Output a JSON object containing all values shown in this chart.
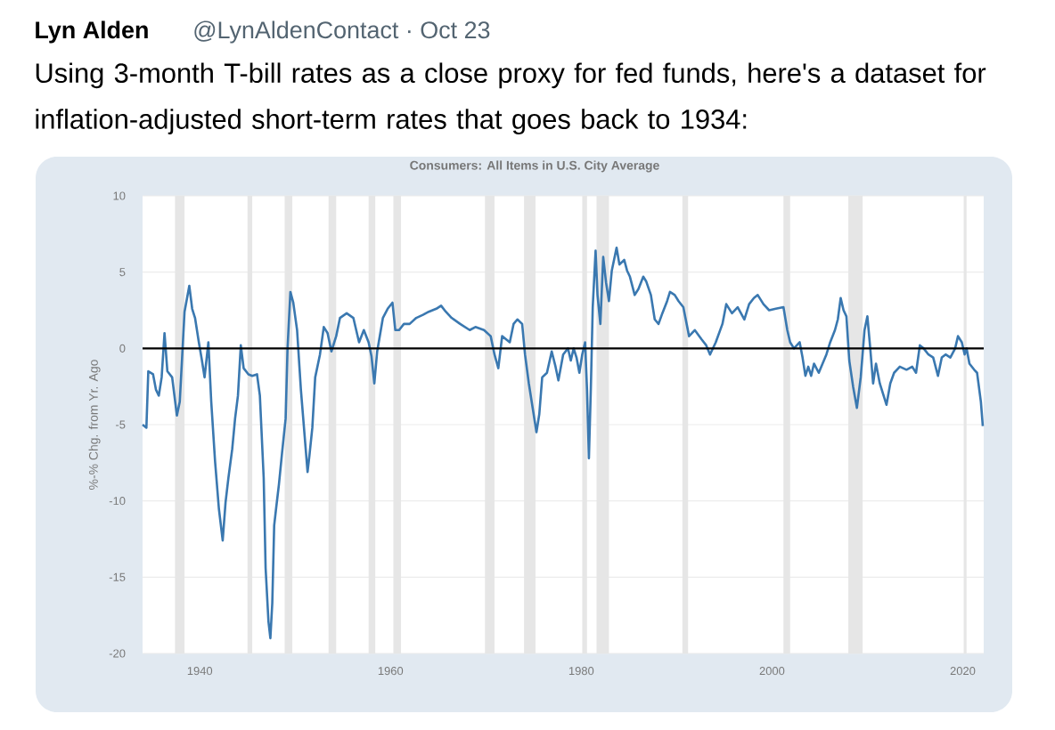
{
  "chart_data": {
    "type": "line",
    "title": "Using 3-month T-bill rates as a close proxy for fed funds, here's a dataset for inflation-adjusted short-term rates that goes back to 1934:",
    "subtitle": "Consumers: All Items in U.S. City Average",
    "annotations": [
      "Lyn Alden",
      "@LynAldenContact · Oct 23"
    ],
    "ylabel": "%-% Chg. from Yr. Ago",
    "x": [
      1934.0,
      1934.4,
      1934.6,
      1935.1,
      1935.4,
      1935.7,
      1936.0,
      1936.3,
      1936.6,
      1937.1,
      1937.6,
      1937.9,
      1938.4,
      1938.9,
      1939.2,
      1939.5,
      1939.9,
      1940.2,
      1940.5,
      1940.9,
      1941.2,
      1941.6,
      1942.0,
      1942.4,
      1942.7,
      1943.0,
      1943.4,
      1943.7,
      1944.0,
      1944.3,
      1944.6,
      1945.1,
      1945.5,
      1946.0,
      1946.3,
      1946.7,
      1946.9,
      1947.2,
      1947.4,
      1947.6,
      1947.8,
      1948.0,
      1948.3,
      1948.6,
      1949.0,
      1949.2,
      1949.5,
      1949.8,
      1950.2,
      1950.6,
      1951.0,
      1951.3,
      1951.5,
      1951.8,
      1952.1,
      1952.6,
      1953.0,
      1953.4,
      1953.8,
      1954.3,
      1954.7,
      1955.4,
      1956.1,
      1956.7,
      1957.2,
      1957.7,
      1958.0,
      1958.3,
      1958.6,
      1959.2,
      1959.7,
      1960.2,
      1960.5,
      1960.9,
      1961.4,
      1962.0,
      1962.7,
      1963.4,
      1964.0,
      1964.8,
      1965.3,
      1965.8,
      1966.4,
      1967.3,
      1968.3,
      1968.9,
      1969.8,
      1970.5,
      1970.9,
      1971.3,
      1971.7,
      1972.1,
      1972.5,
      1972.9,
      1973.3,
      1973.8,
      1974.1,
      1974.5,
      1974.9,
      1975.3,
      1975.6,
      1975.9,
      1976.4,
      1976.9,
      1977.3,
      1977.6,
      1978.1,
      1978.6,
      1978.9,
      1979.2,
      1979.5,
      1979.8,
      1980.1,
      1980.4,
      1980.6,
      1980.8,
      1981.0,
      1981.2,
      1981.5,
      1981.7,
      1982.0,
      1982.3,
      1982.6,
      1982.9,
      1983.2,
      1983.7,
      1984.0,
      1984.5,
      1984.8,
      1985.1,
      1985.6,
      1986.0,
      1986.5,
      1986.8,
      1987.3,
      1987.7,
      1988.1,
      1988.5,
      1989.0,
      1989.3,
      1989.8,
      1990.2,
      1990.7,
      1991.3,
      1991.9,
      1992.6,
      1993.1,
      1993.5,
      1994.1,
      1994.8,
      1995.2,
      1995.8,
      1996.4,
      1997.1,
      1997.6,
      1998.1,
      1998.5,
      1999.1,
      1999.7,
      2000.4,
      2001.2,
      2001.6,
      2001.9,
      2002.3,
      2002.9,
      2003.2,
      2003.5,
      2003.8,
      2004.1,
      2004.4,
      2004.9,
      2005.3,
      2005.7,
      2006.1,
      2006.6,
      2006.9,
      2007.2,
      2007.5,
      2007.8,
      2008.1,
      2008.5,
      2008.9,
      2009.3,
      2009.7,
      2010.0,
      2010.3,
      2010.6,
      2010.9,
      2011.3,
      2011.7,
      2012.0,
      2012.4,
      2012.8,
      2013.4,
      2014.1,
      2014.7,
      2015.1,
      2015.5,
      2015.9,
      2016.4,
      2016.9,
      2017.4,
      2017.8,
      2018.2,
      2018.7,
      2019.2,
      2019.5,
      2019.9,
      2020.2,
      2020.4,
      2020.7,
      2021.2,
      2021.5,
      2021.9,
      2022.1
    ],
    "values": [
      -5.0,
      -5.2,
      -1.5,
      -1.7,
      -2.7,
      -3.1,
      -1.9,
      1.0,
      -1.5,
      -1.9,
      -4.4,
      -3.5,
      2.4,
      4.1,
      2.6,
      2.0,
      0.4,
      -0.7,
      -1.9,
      0.4,
      -3.5,
      -7.4,
      -10.5,
      -12.6,
      -10.1,
      -8.5,
      -6.6,
      -4.6,
      -3.1,
      0.2,
      -1.3,
      -1.7,
      -1.8,
      -1.7,
      -3.1,
      -8.5,
      -14.4,
      -17.9,
      -19.0,
      -16.7,
      -11.6,
      -10.5,
      -8.9,
      -7.0,
      -4.6,
      0.0,
      3.7,
      3.0,
      1.2,
      -2.7,
      -5.8,
      -8.1,
      -7.0,
      -5.2,
      -1.9,
      -0.4,
      1.4,
      1.0,
      -0.2,
      0.8,
      2.0,
      2.3,
      2.0,
      0.4,
      1.2,
      0.4,
      -0.5,
      -2.3,
      -0.2,
      2.0,
      2.6,
      3.0,
      1.2,
      1.2,
      1.6,
      1.6,
      2.0,
      2.2,
      2.4,
      2.6,
      2.8,
      2.4,
      2.0,
      1.6,
      1.2,
      1.4,
      1.2,
      0.8,
      -0.4,
      -1.3,
      0.8,
      0.6,
      0.4,
      1.6,
      1.9,
      1.6,
      -0.4,
      -2.3,
      -3.9,
      -5.5,
      -4.3,
      -1.9,
      -1.6,
      -0.2,
      -1.2,
      -2.1,
      -0.4,
      0.0,
      -0.8,
      0.0,
      -0.6,
      -1.6,
      -0.4,
      0.4,
      -2.7,
      -7.2,
      -2.7,
      2.7,
      6.4,
      3.5,
      1.6,
      6.0,
      4.3,
      3.1,
      5.1,
      6.6,
      5.5,
      5.8,
      5.1,
      4.7,
      3.5,
      3.9,
      4.7,
      4.4,
      3.5,
      1.9,
      1.6,
      2.3,
      3.1,
      3.7,
      3.5,
      3.1,
      2.7,
      0.8,
      1.2,
      0.6,
      0.2,
      -0.4,
      0.4,
      1.6,
      2.9,
      2.3,
      2.7,
      1.9,
      2.9,
      3.3,
      3.5,
      2.9,
      2.5,
      2.6,
      2.7,
      1.2,
      0.4,
      0.0,
      0.4,
      -0.6,
      -1.8,
      -1.2,
      -1.8,
      -1.0,
      -1.6,
      -1.0,
      -0.4,
      0.4,
      1.2,
      1.9,
      3.3,
      2.5,
      2.1,
      -0.8,
      -2.5,
      -3.9,
      -1.9,
      1.2,
      2.1,
      0.0,
      -2.3,
      -1.0,
      -2.3,
      -3.1,
      -3.7,
      -2.3,
      -1.6,
      -1.2,
      -1.4,
      -1.2,
      -1.6,
      0.2,
      0.0,
      -0.4,
      -0.6,
      -1.8,
      -0.6,
      -0.4,
      -0.6,
      0.0,
      0.8,
      0.4,
      -0.4,
      0.0,
      -1.0,
      -1.4,
      -1.6,
      -3.5,
      -5.1
    ],
    "color": "#3a78b0",
    "xlim": [
      1934,
      2022.2
    ],
    "ylim": [
      -20,
      10
    ],
    "xticks": [
      1940,
      1960,
      1980,
      2000,
      2020
    ],
    "yticks": [
      -20,
      -15,
      -10,
      -5,
      0,
      5,
      10
    ],
    "grid": "y",
    "ref_lines": [
      {
        "axis": "y",
        "value": 0,
        "color": "#000000"
      }
    ],
    "bands": [
      {
        "axis": "x",
        "from": 1937.4,
        "to": 1938.4,
        "color": "#e6e6e6"
      },
      {
        "axis": "x",
        "from": 1945.0,
        "to": 1945.5,
        "color": "#e6e6e6"
      },
      {
        "axis": "x",
        "from": 1948.9,
        "to": 1949.7,
        "color": "#e6e6e6"
      },
      {
        "axis": "x",
        "from": 1953.5,
        "to": 1954.3,
        "color": "#e6e6e6"
      },
      {
        "axis": "x",
        "from": 1957.7,
        "to": 1958.4,
        "color": "#e6e6e6"
      },
      {
        "axis": "x",
        "from": 1960.3,
        "to": 1961.1,
        "color": "#e6e6e6"
      },
      {
        "axis": "x",
        "from": 1969.9,
        "to": 1970.9,
        "color": "#e6e6e6"
      },
      {
        "axis": "x",
        "from": 1974.0,
        "to": 1975.2,
        "color": "#e6e6e6"
      },
      {
        "axis": "x",
        "from": 1980.1,
        "to": 1980.6,
        "color": "#e6e6e6"
      },
      {
        "axis": "x",
        "from": 1981.6,
        "to": 1982.9,
        "color": "#e6e6e6"
      },
      {
        "axis": "x",
        "from": 1990.6,
        "to": 1991.2,
        "color": "#e6e6e6"
      },
      {
        "axis": "x",
        "from": 2001.2,
        "to": 2001.9,
        "color": "#e6e6e6"
      },
      {
        "axis": "x",
        "from": 2008.0,
        "to": 2009.5,
        "color": "#e6e6e6"
      },
      {
        "axis": "x",
        "from": 2020.1,
        "to": 2020.4,
        "color": "#e6e6e6"
      }
    ]
  }
}
